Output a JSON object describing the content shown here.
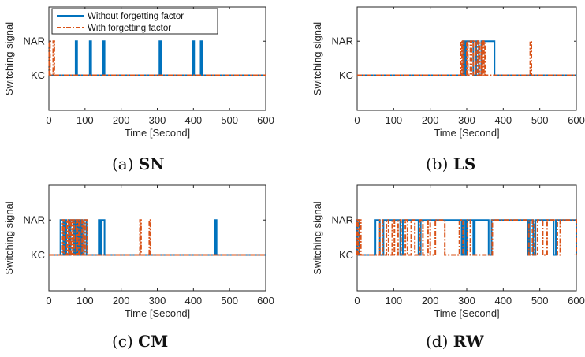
{
  "legend": {
    "items": [
      {
        "label": "Without forgetting factor",
        "color": "#0072BD",
        "style": "solid"
      },
      {
        "label": "With forgetting factor",
        "color": "#D95319",
        "style": "dashdot"
      }
    ],
    "placement": "top-left"
  },
  "chart_data": [
    {
      "type": "line",
      "caption_prefix": "(a)",
      "caption_label": "SN",
      "xlabel": "Time [Second]",
      "ylabel": "Switching signal",
      "xlim": [
        0,
        600
      ],
      "xticks": [
        "0",
        "100",
        "200",
        "300",
        "400",
        "500",
        "600"
      ],
      "yticks": [
        "KC",
        "NAR"
      ],
      "grid": false,
      "show_legend": true,
      "series": [
        {
          "name": "Without forgetting factor",
          "segments": [
            [
              74,
              78
            ],
            [
              113,
              117
            ],
            [
              150,
              154
            ],
            [
              306,
              310
            ],
            [
              398,
              402
            ],
            [
              420,
              424
            ]
          ]
        },
        {
          "name": "With forgetting factor",
          "segments": [
            [
              1,
              3
            ],
            [
              12,
              15
            ]
          ]
        }
      ]
    },
    {
      "type": "line",
      "caption_prefix": "(b)",
      "caption_label": "LS",
      "xlabel": "Time [Second]",
      "ylabel": "Switching signal",
      "xlim": [
        0,
        600
      ],
      "xticks": [
        "0",
        "100",
        "200",
        "300",
        "400",
        "500",
        "600"
      ],
      "yticks": [
        "KC",
        "NAR"
      ],
      "grid": false,
      "show_legend": false,
      "series": [
        {
          "name": "Without forgetting factor",
          "segments": [
            [
              290,
              294
            ],
            [
              298,
              318
            ],
            [
              326,
              333
            ],
            [
              340,
              376
            ]
          ]
        },
        {
          "name": "With forgetting factor",
          "segments": [
            [
              284,
              287
            ],
            [
              290,
              292
            ],
            [
              300,
              303
            ],
            [
              310,
              313
            ],
            [
              318,
              325
            ],
            [
              330,
              335
            ],
            [
              340,
              342
            ],
            [
              347,
              350
            ],
            [
              474,
              477
            ]
          ]
        }
      ]
    },
    {
      "type": "line",
      "caption_prefix": "(c)",
      "caption_label": "CM",
      "xlabel": "Time [Second]",
      "ylabel": "Switching signal",
      "xlim": [
        0,
        600
      ],
      "xticks": [
        "0",
        "100",
        "200",
        "300",
        "400",
        "500",
        "600"
      ],
      "yticks": [
        "KC",
        "NAR"
      ],
      "grid": false,
      "show_legend": false,
      "series": [
        {
          "name": "Without forgetting factor",
          "segments": [
            [
              32,
              40
            ],
            [
              44,
              48
            ],
            [
              55,
              57
            ],
            [
              60,
              68
            ],
            [
              72,
              76
            ],
            [
              80,
              84
            ],
            [
              88,
              92
            ],
            [
              97,
              104
            ],
            [
              138,
              142
            ],
            [
              144,
              154
            ],
            [
              460,
              464
            ]
          ]
        },
        {
          "name": "With forgetting factor",
          "segments": [
            [
              38,
              42
            ],
            [
              50,
              54
            ],
            [
              58,
              62
            ],
            [
              66,
              70
            ],
            [
              76,
              79
            ],
            [
              83,
              86
            ],
            [
              92,
              95
            ],
            [
              100,
              106
            ],
            [
              252,
              255
            ],
            [
              278,
              281
            ]
          ]
        }
      ]
    },
    {
      "type": "line",
      "caption_prefix": "(d)",
      "caption_label": "RW",
      "xlabel": "Time [Second]",
      "ylabel": "Switching signal",
      "xlim": [
        0,
        600
      ],
      "xticks": [
        "0",
        "100",
        "200",
        "300",
        "400",
        "500",
        "600"
      ],
      "yticks": [
        "KC",
        "NAR"
      ],
      "grid": false,
      "show_legend": false,
      "series": [
        {
          "name": "Without forgetting factor",
          "segments": [
            [
              0,
              5
            ],
            [
              50,
              62
            ],
            [
              72,
              118
            ],
            [
              125,
              168
            ],
            [
              174,
              286
            ],
            [
              290,
              296
            ],
            [
              300,
              318
            ],
            [
              322,
              360
            ],
            [
              368,
              468
            ],
            [
              472,
              482
            ],
            [
              488,
              538
            ],
            [
              544,
              600
            ]
          ]
        },
        {
          "name": "With forgetting factor",
          "segments": [
            [
              0,
              2
            ],
            [
              6,
              10
            ],
            [
              62,
              70
            ],
            [
              80,
              86
            ],
            [
              96,
              102
            ],
            [
              112,
              120
            ],
            [
              132,
              138
            ],
            [
              148,
              158
            ],
            [
              172,
              180
            ],
            [
              194,
              200
            ],
            [
              214,
              240
            ],
            [
              280,
              290
            ],
            [
              302,
              310
            ],
            [
              370,
              470
            ],
            [
              480,
              486
            ],
            [
              494,
              508
            ],
            [
              520,
              548
            ],
            [
              556,
              600
            ]
          ]
        }
      ]
    }
  ]
}
